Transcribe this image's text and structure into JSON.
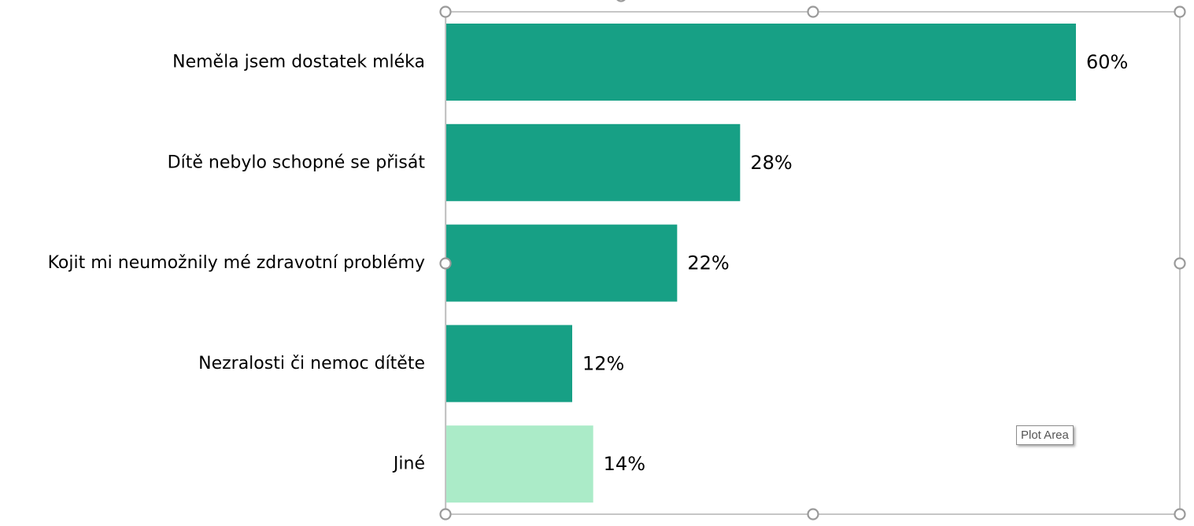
{
  "chart_data": {
    "type": "bar",
    "orientation": "horizontal",
    "categories": [
      "Neměla jsem dostatek mléka",
      "Dítě nebylo schopné se přisát",
      "Kojit mi neumožnily mé zdravotní problémy",
      "Nezralosti či nemoc dítěte",
      "Jiné"
    ],
    "values": [
      60,
      28,
      22,
      12,
      14
    ],
    "data_labels": [
      "60%",
      "28%",
      "22%",
      "12%",
      "14%"
    ],
    "colors": [
      "#17a085",
      "#17a085",
      "#17a085",
      "#17a085",
      "#abebc8"
    ],
    "xlim": [
      0,
      70
    ],
    "grid": false,
    "legend": "none"
  },
  "tooltip": {
    "text": "Plot Area"
  }
}
